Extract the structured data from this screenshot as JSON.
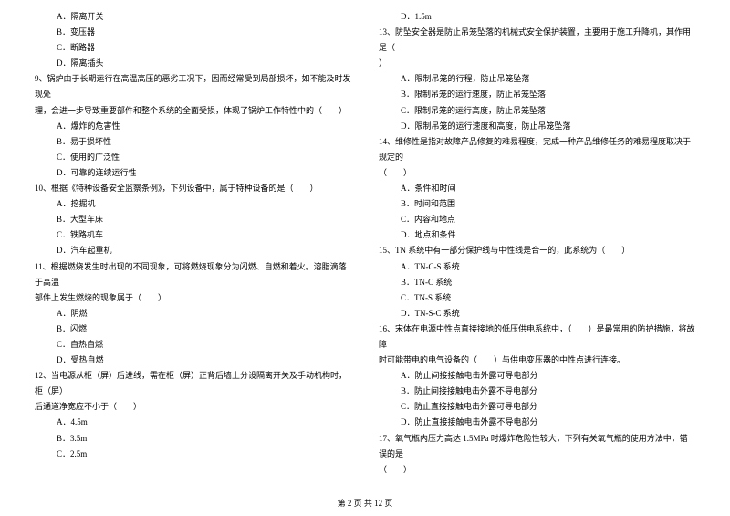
{
  "left": {
    "opts1": [
      "A．隔离开关",
      "B．变压器",
      "C．断路器",
      "D．隔离插头"
    ],
    "q9a": "9、锅炉由于长期运行在高温高压的恶劣工况下，因而经常受到局部损坏，如不能及时发现处",
    "q9b": "理，会进一步导致重要部件和整个系统的全面受损，体现了锅炉工作特性中的（　　）",
    "opts9": [
      "A．爆炸的危害性",
      "B．易于损坏性",
      "C．使用的广泛性",
      "D．可靠的连续运行性"
    ],
    "q10": "10、根据《特种设备安全监察条例》，下列设备中，属于特种设备的是（　　）",
    "opts10": [
      "A．挖掘机",
      "B．大型车床",
      "C．铁路机车",
      "D．汽车起重机"
    ],
    "q11a": "11、根据燃烧发生时出现的不同现象，可将燃烧现象分为闪燃、自燃和着火。溶脂滴落于高温",
    "q11b": "部件上发生燃烧的现象属于（　　）",
    "opts11": [
      "A．阴燃",
      "B．闪燃",
      "C．自热自燃",
      "D．受热自燃"
    ],
    "q12a": "12、当电源从柜（屏）后进线，需在柜（屏）正背后墙上分设隔离开关及手动机构时，柜（屏）",
    "q12b": "后通道净宽应不小于（　　）",
    "opts12": [
      "A．4.5m",
      "B．3.5m",
      "C．2.5m"
    ]
  },
  "right": {
    "optD12": "D．1.5m",
    "q13a": "13、防坠安全器是防止吊笼坠落的机械式安全保护装置，主要用于施工升降机，其作用是（",
    "q13b": "）",
    "opts13": [
      "A．限制吊笼的行程，防止吊笼坠落",
      "B．限制吊笼的运行速度，防止吊笼坠落",
      "C．限制吊笼的运行高度，防止吊笼坠落",
      "D．限制吊笼的运行速度和高度，防止吊笼坠落"
    ],
    "q14a": "14、维修性是指对故障产品修复的难易程度，完成一种产品维修任务的难易程度取决于规定的",
    "q14b": "（　　）",
    "opts14": [
      "A．条件和时间",
      "B．时间和范围",
      "C．内容和地点",
      "D．地点和条件"
    ],
    "q15": "15、TN 系统中有一部分保护线与中性线是合一的，此系统为（　　）",
    "opts15": [
      "A．TN-C-S 系统",
      "B．TN-C 系统",
      "C．TN-S 系统",
      "D．TN-S-C 系统"
    ],
    "q16a": "16、宋体在电源中性点直接接地的低压供电系统中，（　　）是最常用的防护措施，将故障",
    "q16b": "时可能带电的电气设备的（　　）与供电变压器的中性点进行连接。",
    "opts16": [
      "A．防止间接接触电击外露可导电部分",
      "B．防止间接接触电击外露不导电部分",
      "C．防止直接接触电击外露可导电部分",
      "D．防止直接接触电击外露不导电部分"
    ],
    "q17a": "17、氧气瓶内压力高达 1.5MPa 时爆炸危险性较大，下列有关氧气瓶的使用方法中，错误的是",
    "q17b": "（　　）"
  },
  "footer": "第 2 页 共 12 页"
}
